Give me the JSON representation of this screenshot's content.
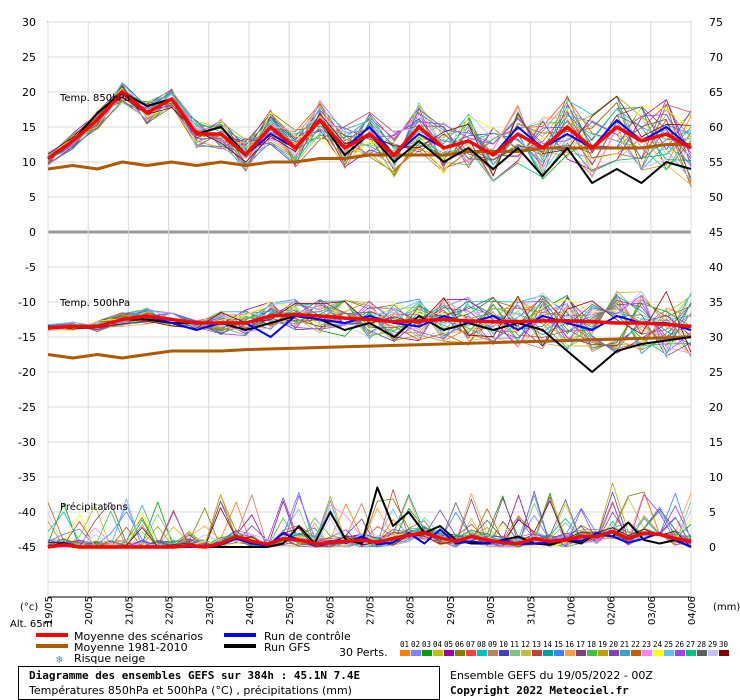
{
  "chart_data": {
    "type": "line",
    "panels": [
      "Temp. 850hPa",
      "Temp. 500hPa",
      "Précipitations"
    ],
    "left_axis": {
      "unit": "(°c)",
      "ticks": [
        30,
        25,
        20,
        15,
        10,
        5,
        0,
        -5,
        -10,
        -15,
        -20,
        -25,
        -30,
        -35,
        -40,
        -45
      ]
    },
    "right_axis": {
      "unit": "(mm)",
      "ticks": [
        75,
        70,
        65,
        60,
        55,
        50,
        45,
        40,
        35,
        30,
        25,
        20,
        15,
        10,
        5,
        0
      ]
    },
    "x_labels": [
      "19/05",
      "20/05",
      "21/05",
      "22/05",
      "23/05",
      "24/05",
      "25/05",
      "26/05",
      "27/05",
      "28/05",
      "29/05",
      "30/05",
      "31/05",
      "01/06",
      "02/06",
      "03/06",
      "04/06"
    ],
    "altitude_label": "Alt. 65m",
    "series": [
      {
        "name": "Moyenne des scénarios",
        "color": "#ff0000"
      },
      {
        "name": "Moyenne 1981-2010",
        "color": "#b05a00"
      },
      {
        "name": "Run de contrôle",
        "color": "#0000ff"
      },
      {
        "name": "Run GFS",
        "color": "#000000"
      }
    ],
    "t850": {
      "mean": [
        10.5,
        13,
        16,
        20,
        17,
        19,
        14,
        14,
        11,
        15,
        12,
        16,
        12,
        14,
        11,
        15,
        12,
        13,
        11,
        14,
        12,
        15,
        12,
        15,
        13,
        14,
        12
      ],
      "clim": [
        9,
        9.5,
        9,
        10,
        9.5,
        10,
        9.5,
        10,
        9.5,
        10,
        10,
        10.5,
        10.5,
        11,
        11,
        11,
        11,
        11.5,
        11.5,
        11.5,
        12,
        12,
        12,
        12,
        12,
        12.5,
        12.5
      ],
      "control": [
        10.5,
        13,
        16,
        20,
        17,
        19,
        14,
        14,
        11,
        14,
        12,
        16,
        12,
        15,
        11,
        14,
        12,
        13,
        11,
        15,
        12,
        14,
        12,
        16,
        13,
        15,
        12
      ],
      "gfs": [
        10.5,
        13,
        17,
        20,
        18,
        19,
        14,
        15,
        11,
        15,
        12,
        16,
        11,
        14,
        10,
        13,
        10,
        12,
        9,
        12,
        8,
        12,
        7,
        9,
        7,
        10,
        9
      ]
    },
    "t500": {
      "mean": [
        -13.7,
        -13.5,
        -13.5,
        -12.5,
        -12,
        -12.5,
        -13,
        -13,
        -13,
        -12,
        -11.8,
        -12,
        -12.3,
        -12.5,
        -12.8,
        -12.7,
        -12.5,
        -12.7,
        -12.8,
        -12.8,
        -12.7,
        -12.7,
        -12.8,
        -13,
        -13,
        -13.2,
        -13.5
      ],
      "clim": [
        -17.5,
        -18,
        -17.5,
        -18,
        -17.5,
        -17,
        -17,
        -17,
        -16.8,
        -16.7,
        -16.6,
        -16.5,
        -16.4,
        -16.3,
        -16.2,
        -16.1,
        -16,
        -15.9,
        -15.8,
        -15.7,
        -15.6,
        -15.5,
        -15.4,
        -15.3,
        -15.2,
        -15.1,
        -15
      ],
      "control": [
        -13.7,
        -13.5,
        -13.5,
        -12.5,
        -12,
        -13,
        -14,
        -13,
        -13,
        -15,
        -12,
        -12.5,
        -13,
        -12,
        -13,
        -13.5,
        -12,
        -13,
        -12,
        -14,
        -12,
        -13,
        -14,
        -12,
        -13,
        -13,
        -14
      ],
      "gfs": [
        -13.7,
        -13.5,
        -13.5,
        -12.5,
        -12.5,
        -13,
        -13,
        -13,
        -14,
        -13,
        -12,
        -12.5,
        -14,
        -13,
        -15,
        -12,
        -14,
        -13,
        -14,
        -13,
        -14,
        -17,
        -20,
        -17,
        -16,
        -15.5,
        -15
      ]
    },
    "precip": {
      "mean": [
        0,
        0.3,
        0,
        0,
        0,
        0,
        0,
        0,
        0,
        0.2,
        0,
        0.5,
        1.5,
        0.8,
        0.4,
        1.2,
        1,
        0.5,
        0.6,
        0.8,
        1,
        0.7,
        1.2,
        1.7,
        2,
        1.3,
        0.8,
        1.5,
        1,
        0.6,
        0.5,
        1.2,
        0.8,
        1,
        1.5,
        1.5,
        2.2,
        1.2,
        2,
        1.8,
        1.2,
        0.8
      ],
      "control": [
        0,
        0.5,
        0,
        0,
        0,
        0,
        0,
        0,
        0,
        0,
        0,
        0.3,
        1.2,
        0.5,
        0.2,
        2,
        1,
        0.3,
        0.8,
        0.6,
        1.5,
        0.4,
        0.6,
        2,
        0.5,
        2.5,
        0.5,
        0.8,
        0.5,
        1,
        0.4,
        0.5,
        0.6,
        1.2,
        0.8,
        2,
        1.5,
        0.6,
        1.2,
        2,
        1,
        0
      ],
      "gfs": [
        0,
        0.6,
        0,
        0,
        0,
        0,
        0,
        0,
        0,
        0,
        0,
        0,
        0,
        0,
        0,
        0.5,
        3,
        0.5,
        5,
        1,
        0.5,
        8.5,
        3,
        5,
        2,
        3,
        1,
        0.5,
        0.5,
        1,
        1.5,
        0.5,
        0.3,
        1,
        0.5,
        2,
        1.5,
        3.5,
        1,
        0.5,
        1,
        0
      ]
    },
    "perturbations_label": "30 Perts.",
    "member_numbers": [
      "01",
      "02",
      "03",
      "04",
      "05",
      "06",
      "07",
      "08",
      "09",
      "10",
      "11",
      "12",
      "13",
      "14",
      "15",
      "16",
      "17",
      "18",
      "19",
      "20",
      "21",
      "22",
      "23",
      "24",
      "25",
      "26",
      "27",
      "28",
      "29",
      "30"
    ],
    "member_colors": [
      "#ff8000",
      "#8080ff",
      "#00a000",
      "#c0c000",
      "#a000a0",
      "#808000",
      "#ff4040",
      "#00c0c0",
      "#c08060",
      "#4040c0",
      "#80c080",
      "#c0c040",
      "#c04040",
      "#00a0a0",
      "#4080ff",
      "#ffa040",
      "#804080",
      "#40c040",
      "#c0a000",
      "#8040c0",
      "#40a0c0",
      "#c06000",
      "#ff80ff",
      "#ffff00",
      "#60c0ff",
      "#a040ff",
      "#00c080",
      "#606060",
      "#c0c0ff",
      "#800000"
    ]
  },
  "legend": {
    "mean": "Moyenne des scénarios",
    "clim": "Moyenne 1981-2010",
    "snow": "Risque neige",
    "control": "Run de contrôle",
    "gfs": "Run GFS"
  },
  "footer": {
    "title": "Diagramme des ensembles GEFS sur 384h : 45.1N 7.4E",
    "subtitle": "Températures 850hPa et 500hPa (°C) , précipitations (mm)",
    "run": "Ensemble GEFS du 19/05/2022 - 00Z",
    "copyright": "Copyright 2022 Meteociel.fr"
  }
}
